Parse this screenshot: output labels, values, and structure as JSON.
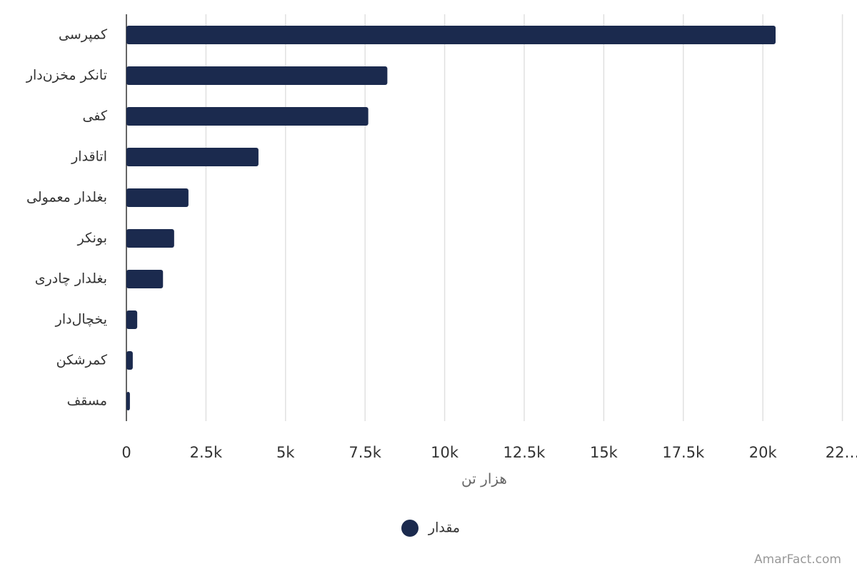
{
  "chart_data": {
    "type": "bar",
    "orientation": "horizontal",
    "categories": [
      "کمپرسی",
      "تانکر مخزن‌دار",
      "کفی",
      "اتاقدار",
      "بغلدار معمولی",
      "بونکر",
      "بغلدار چادری",
      "یخچال‌دار",
      "کمرشکن",
      "مسقف"
    ],
    "series": [
      {
        "name": "مقدار",
        "color": "#1b2a4e",
        "values": [
          20400,
          8200,
          7600,
          4150,
          1950,
          1500,
          1150,
          340,
          200,
          110
        ]
      }
    ],
    "xlabel": "هزار تن",
    "xlim": [
      0,
      22500
    ],
    "xticks": [
      0,
      {
        "value": 2500,
        "label": "2.5k"
      },
      {
        "value": 5000,
        "label": "5k"
      },
      {
        "value": 7500,
        "label": "7.5k"
      },
      {
        "value": 10000,
        "label": "10k"
      },
      {
        "value": 12500,
        "label": "12.5k"
      },
      {
        "value": 15000,
        "label": "15k"
      },
      {
        "value": 17500,
        "label": "17.5k"
      },
      {
        "value": 20000,
        "label": "20k"
      },
      {
        "value": 22500,
        "label": "22…"
      }
    ],
    "grid": true,
    "legend": "bottom",
    "source": "AmarFact.com"
  }
}
